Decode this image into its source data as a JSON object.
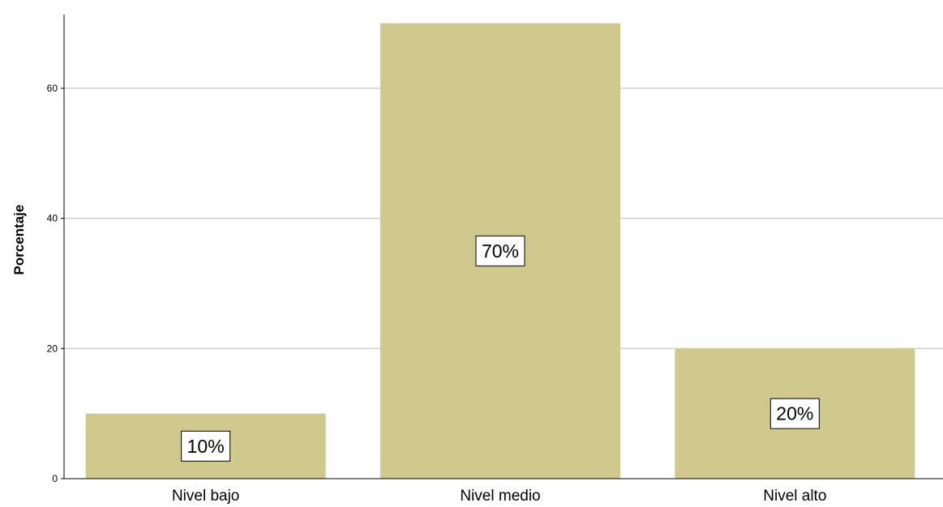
{
  "chart_data": {
    "type": "bar",
    "title": "",
    "xlabel": "",
    "ylabel": "Porcentaje",
    "categories": [
      "Nivel bajo",
      "Nivel medio",
      "Nivel alto"
    ],
    "values": [
      10,
      70,
      20
    ],
    "data_labels": [
      "10%",
      "70%",
      "20%"
    ],
    "yticks": [
      0,
      20,
      40,
      60
    ],
    "ytick_labels": [
      "0",
      "20",
      "40",
      "60"
    ],
    "ylim": [
      0,
      72
    ],
    "grid": true,
    "bar_color": "#cfc98e",
    "grid_color": "#d0d0d0"
  }
}
